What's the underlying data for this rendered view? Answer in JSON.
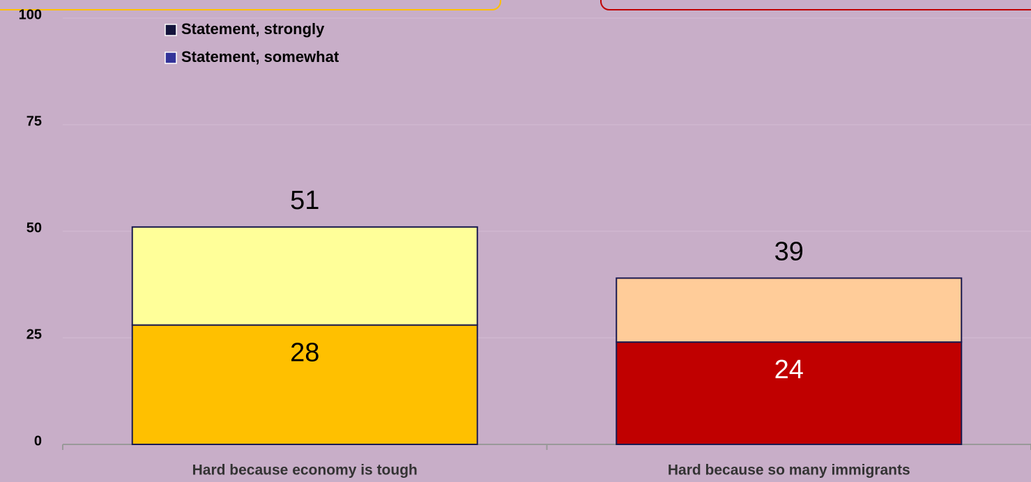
{
  "chart_data": {
    "type": "stacked_bar",
    "categories": [
      "Hard because economy is tough",
      "Hard because so many immigrants"
    ],
    "series": [
      {
        "name": "Statement, strongly",
        "color": "#14143c",
        "colors": [
          "#ffc000",
          "#c00000"
        ],
        "label_colors": [
          "#000000",
          "#ffffff"
        ],
        "values": [
          28,
          24
        ]
      },
      {
        "name": "Statement, somewhat",
        "color": "#333399",
        "colors": [
          "#ffff99",
          "#ffcc99"
        ],
        "values": [
          23,
          15
        ]
      }
    ],
    "totals": [
      51,
      39
    ],
    "ylim": [
      0,
      100
    ],
    "yticks": [
      0,
      25,
      50,
      75,
      100
    ],
    "grid": true,
    "legend": "top-left"
  }
}
